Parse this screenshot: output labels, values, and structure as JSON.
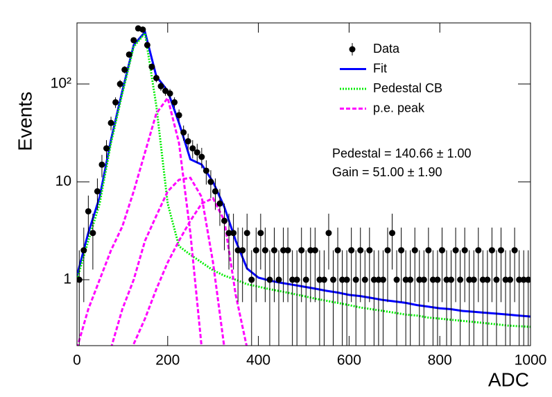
{
  "chart_data": {
    "type": "scatter",
    "xlabel": "ADC",
    "ylabel": "Events",
    "xlim": [
      0,
      1000
    ],
    "xticks": [
      0,
      200,
      400,
      600,
      800,
      1000
    ],
    "ylim": [
      0.212,
      421
    ],
    "yticks": [
      1,
      10,
      {
        "value": 100,
        "label": "10²"
      }
    ],
    "log_y": true,
    "legend": "upper right",
    "annotations": [
      "Pedestal = 140.66 ± 1.00",
      "Gain = 51.00 ± 1.90"
    ],
    "curve_x": [
      0,
      25,
      50,
      75,
      100,
      125,
      150,
      175,
      200,
      225,
      250,
      275,
      300,
      325,
      350,
      375,
      400,
      425,
      450,
      475,
      500,
      525,
      550,
      575,
      600,
      625,
      650,
      675,
      700,
      725,
      750,
      775,
      800,
      825,
      850,
      875,
      900,
      925,
      950,
      975,
      1000
    ],
    "series": [
      {
        "name": "Data",
        "color": "#000000",
        "style": "markers",
        "x": [
          5,
          15,
          25,
          35,
          45,
          55,
          65,
          75,
          85,
          95,
          105,
          115,
          125,
          135,
          145,
          155,
          165,
          175,
          185,
          195,
          205,
          215,
          225,
          235,
          245,
          255,
          265,
          275,
          285,
          295,
          305,
          315,
          325,
          335,
          345,
          355,
          365,
          375,
          385,
          395,
          405,
          415,
          425,
          435,
          445,
          455,
          465,
          475,
          485,
          495,
          505,
          515,
          525,
          535,
          545,
          555,
          565,
          575,
          585,
          595,
          605,
          615,
          625,
          635,
          645,
          655,
          665,
          675,
          685,
          695,
          705,
          715,
          725,
          735,
          745,
          755,
          765,
          775,
          785,
          795,
          805,
          815,
          825,
          835,
          845,
          855,
          865,
          875,
          885,
          895,
          905,
          915,
          925,
          935,
          945,
          955,
          965,
          975,
          985,
          995
        ],
        "values": [
          1,
          2,
          5,
          3,
          8,
          15,
          22,
          40,
          65,
          100,
          140,
          200,
          280,
          370,
          360,
          250,
          150,
          115,
          95,
          85,
          80,
          65,
          48,
          32,
          26,
          22,
          20,
          18,
          13,
          10,
          8,
          6,
          4,
          3,
          3,
          2,
          2,
          3,
          1,
          2,
          3,
          2,
          1,
          2,
          1,
          2,
          2,
          1,
          1,
          2,
          1,
          2,
          2,
          1,
          1,
          3,
          1,
          2,
          1,
          1,
          2,
          1,
          2,
          1,
          2,
          1,
          1,
          1,
          2,
          3,
          1,
          2,
          1,
          1,
          2,
          1,
          1,
          2,
          1,
          1,
          2,
          1,
          1,
          2,
          1,
          2,
          1,
          1,
          2,
          1,
          1,
          2,
          1,
          2,
          1,
          1,
          2,
          1,
          1,
          1
        ],
        "errors": [
          1,
          1.41,
          2.24,
          1.73,
          2.83,
          3.87,
          4.69,
          6.32,
          8.06,
          10,
          11.8,
          14.1,
          16.7,
          19.2,
          19,
          15.8,
          12.2,
          10.7,
          9.75,
          9.22,
          8.94,
          8.06,
          6.93,
          5.66,
          5.1,
          4.69,
          4.47,
          4.24,
          3.61,
          3.16,
          2.83,
          2.45,
          2,
          1.73,
          1.73,
          1.41,
          1.41,
          1.73,
          1,
          1.41,
          1.73,
          1.41,
          1,
          1.41,
          1,
          1.41,
          1.41,
          1,
          1,
          1.41,
          1,
          1.41,
          1.41,
          1,
          1,
          1.73,
          1,
          1.41,
          1,
          1,
          1.41,
          1,
          1.41,
          1,
          1.41,
          1,
          1,
          1,
          1.41,
          1.73,
          1,
          1.41,
          1,
          1,
          1.41,
          1,
          1,
          1.41,
          1,
          1,
          1.41,
          1,
          1,
          1.41,
          1,
          1.41,
          1,
          1,
          1.41,
          1,
          1,
          1.41,
          1,
          1.41,
          1,
          1,
          1.41,
          1,
          1,
          1
        ]
      },
      {
        "name": "Fit",
        "color": "#0000ff",
        "style": "solid",
        "values": [
          1.1,
          3,
          7,
          27,
          85,
          250,
          340,
          120,
          85,
          40,
          17,
          15,
          10,
          5.5,
          2.5,
          1.3,
          1.05,
          0.98,
          0.93,
          0.89,
          0.85,
          0.81,
          0.77,
          0.74,
          0.7,
          0.68,
          0.65,
          0.62,
          0.6,
          0.58,
          0.55,
          0.53,
          0.51,
          0.5,
          0.48,
          0.47,
          0.46,
          0.45,
          0.44,
          0.43,
          0.42
        ]
      },
      {
        "name": "Pedestal CB",
        "color": "#00ee00",
        "style": "dotted",
        "values": [
          1,
          2.5,
          6,
          25,
          80,
          240,
          330,
          60,
          6,
          2.2,
          1.8,
          1.5,
          1.25,
          1.1,
          1.0,
          0.9,
          0.85,
          0.8,
          0.76,
          0.72,
          0.68,
          0.64,
          0.61,
          0.58,
          0.55,
          0.52,
          0.5,
          0.48,
          0.46,
          0.44,
          0.43,
          0.41,
          0.4,
          0.39,
          0.38,
          0.37,
          0.36,
          0.35,
          0.34,
          0.335,
          0.33
        ]
      },
      {
        "name": "p.e. peak",
        "color": "#ff00ff",
        "style": "dashed",
        "values": [
          [
            0.2,
            0.5,
            1,
            2,
            3.5,
            8,
            20,
            50,
            72,
            25,
            3,
            0.2,
            null,
            null,
            null,
            null,
            null,
            null,
            null,
            null,
            null,
            null,
            null,
            null,
            null,
            null,
            null,
            null,
            null,
            null,
            null,
            null,
            null,
            null,
            null,
            null,
            null,
            null,
            null,
            null,
            null
          ],
          [
            null,
            null,
            null,
            0.2,
            0.5,
            1,
            2.5,
            4.5,
            8,
            10.5,
            11,
            7,
            1.5,
            0.2,
            null,
            null,
            null,
            null,
            null,
            null,
            null,
            null,
            null,
            null,
            null,
            null,
            null,
            null,
            null,
            null,
            null,
            null,
            null,
            null,
            null,
            null,
            null,
            null,
            null,
            null,
            null
          ],
          [
            null,
            null,
            null,
            null,
            null,
            0.22,
            0.4,
            0.8,
            1.5,
            2.5,
            4,
            6,
            6.8,
            4,
            0.7,
            0.2,
            null,
            null,
            null,
            null,
            null,
            null,
            null,
            null,
            null,
            null,
            null,
            null,
            null,
            null,
            null,
            null,
            null,
            null,
            null,
            null,
            null,
            null,
            null,
            null,
            null
          ]
        ]
      }
    ]
  }
}
